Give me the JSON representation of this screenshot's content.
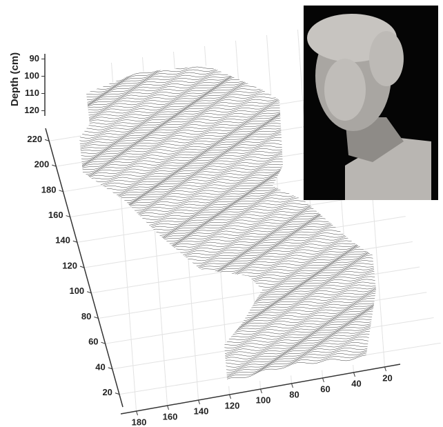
{
  "chart_data": {
    "type": "surface3d",
    "zlabel": "Depth (cm)",
    "zlim": [
      87,
      123
    ],
    "zticks": [
      90,
      100,
      110,
      120
    ],
    "ylim": [
      10,
      230
    ],
    "yticks": [
      20,
      40,
      60,
      80,
      100,
      120,
      140,
      160,
      180,
      200,
      220
    ],
    "xlim": [
      10,
      190
    ],
    "xticks": [
      20,
      40,
      60,
      80,
      100,
      120,
      140,
      160,
      180
    ],
    "grid": true,
    "color": "#222222"
  }
}
